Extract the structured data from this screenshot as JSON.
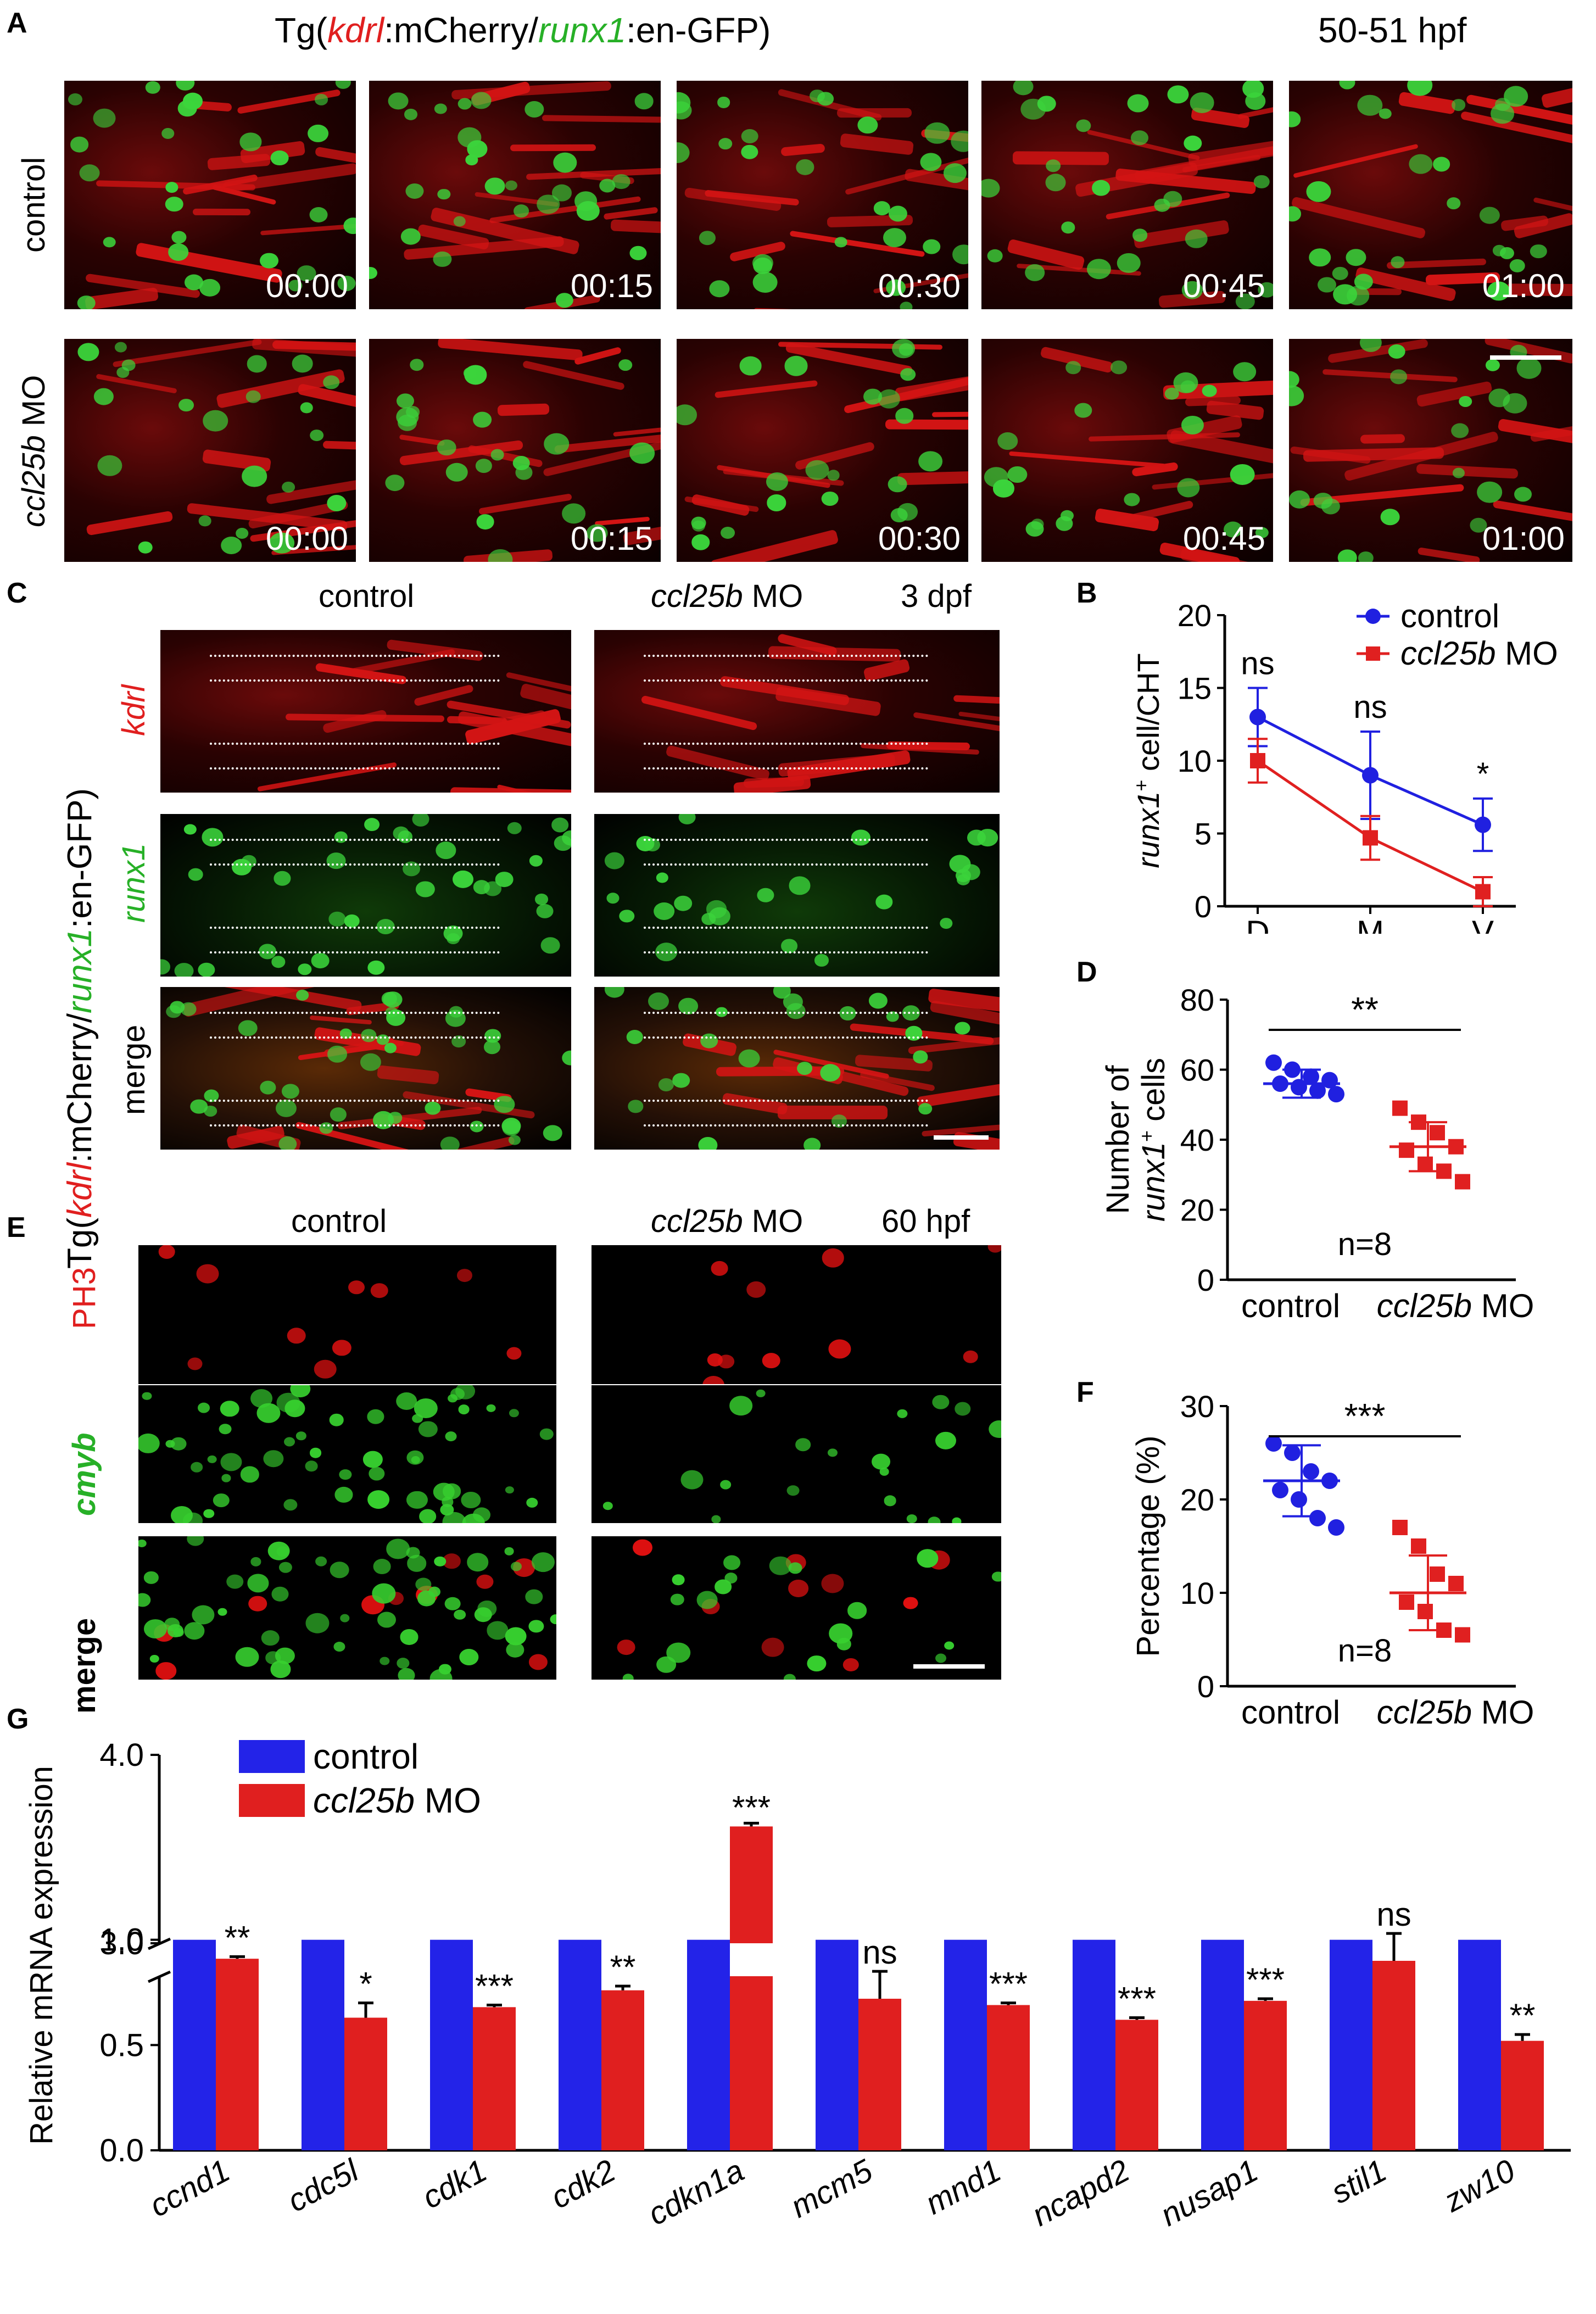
{
  "panelA": {
    "letter": "A",
    "title_prefix": "Tg(",
    "title_kdrl": "kdrl",
    "title_mid1": ":mCherry/",
    "title_runx1": "runx1",
    "title_suffix": ":en-GFP)",
    "stage": "50-51 hpf",
    "row_control": "control",
    "row_mo_gene": "ccl25b",
    "row_mo_suffix": " MO",
    "timestamps": [
      "00:00",
      "00:15",
      "00:30",
      "00:45",
      "01:00"
    ]
  },
  "panelB": {
    "letter": "B",
    "chart_data": {
      "type": "line",
      "categories": [
        "D",
        "M",
        "V"
      ],
      "ylabel_gene": "runx1",
      "ylabel_sup": "+",
      "ylabel_rest": " cell/CHT",
      "ylim": [
        0,
        20
      ],
      "yticks": [
        "0",
        "5",
        "10",
        "15",
        "20"
      ],
      "legend_control": "control",
      "legend_mo_gene": "ccl25b",
      "legend_mo_suffix": " MO",
      "legend_position": "top-right",
      "series": [
        {
          "name": "control",
          "color": "#2020e0",
          "values": [
            13,
            9,
            5.6
          ],
          "errors": [
            2,
            3,
            1.8
          ]
        },
        {
          "name": "ccl25b MO",
          "color": "#e02020",
          "values": [
            10,
            4.7,
            1
          ],
          "errors": [
            1.5,
            1.5,
            1
          ]
        }
      ],
      "annotations": [
        "ns",
        "ns",
        "*"
      ]
    }
  },
  "panelC": {
    "letter": "C",
    "col_control": "control",
    "col_mo_gene": "ccl25b",
    "col_mo_suffix": " MO",
    "stage": "3 dpf",
    "row_kdrl": "kdrl",
    "row_runx1": "runx1",
    "row_merge": "merge",
    "side_prefix": "Tg(",
    "side_kdrl": "kdrl",
    "side_mid": ":mCherry/",
    "side_runx1": "runx1",
    "side_suffix": ":en-GFP)"
  },
  "panelD": {
    "letter": "D",
    "chart_data": {
      "type": "scatter",
      "categories": [
        "control",
        "ccl25b MO"
      ],
      "xlabel_control": "control",
      "xlabel_mo_gene": "ccl25b",
      "xlabel_mo_suffix": " MO",
      "ylabel_line1": "Number of",
      "ylabel_line2_gene": "runx1",
      "ylabel_line2_sup": "+",
      "ylabel_line2_rest": " cells",
      "ylim": [
        0,
        80
      ],
      "yticks": [
        "0",
        "20",
        "40",
        "60",
        "80"
      ],
      "n_label": "n=8",
      "significance": "**",
      "control_points": [
        62,
        60,
        58,
        57,
        56,
        55,
        54,
        53
      ],
      "mo_points": [
        49,
        45,
        42,
        38,
        37,
        33,
        31,
        28
      ],
      "control_mean": 56,
      "control_sd": 4,
      "mo_mean": 38,
      "mo_sd": 7
    }
  },
  "panelE": {
    "letter": "E",
    "col_control": "control",
    "col_mo_gene": "ccl25b",
    "col_mo_suffix": " MO",
    "stage": "60 hpf",
    "row_ph3": "PH3",
    "row_cmyb": "cmyb",
    "row_merge": "merge"
  },
  "panelF": {
    "letter": "F",
    "chart_data": {
      "type": "scatter",
      "categories": [
        "control",
        "ccl25b MO"
      ],
      "xlabel_control": "control",
      "xlabel_mo_gene": "ccl25b",
      "xlabel_mo_suffix": " MO",
      "ylabel": "Percentage (%)",
      "ylim": [
        0,
        30
      ],
      "yticks": [
        "0",
        "10",
        "20",
        "30"
      ],
      "n_label": "n=8",
      "significance": "***",
      "control_points": [
        26,
        25,
        23,
        22,
        21,
        20,
        18,
        17
      ],
      "mo_points": [
        17,
        15,
        12,
        11,
        9,
        8,
        6,
        5.5
      ],
      "control_mean": 22,
      "control_sd": 3.8,
      "mo_mean": 10,
      "mo_sd": 4
    }
  },
  "panelG": {
    "letter": "G",
    "chart_data": {
      "type": "bar",
      "ylabel": "Relative mRNA expression",
      "legend_control": "control",
      "legend_mo_gene": "ccl25b",
      "legend_mo_suffix": " MO",
      "legend_position": "top-left",
      "lower_ylim": [
        0,
        1.2
      ],
      "lower_yticks": [
        "0.0",
        "0.5",
        "1.0"
      ],
      "upper_ylim": [
        3.0,
        4.0
      ],
      "upper_yticks": [
        "3.0",
        "4.0"
      ],
      "categories": [
        "ccnd1",
        "cdc5l",
        "cdk1",
        "cdk2",
        "cdkn1a",
        "mcm5",
        "mnd1",
        "ncapd2",
        "nusap1",
        "stil1",
        "zw10"
      ],
      "series": [
        {
          "name": "control",
          "color": "#2323e8",
          "values": [
            1,
            1,
            1,
            1,
            1,
            1,
            1,
            1,
            1,
            1,
            1
          ]
        },
        {
          "name": "ccl25b MO",
          "color": "#e01f1f",
          "values": [
            0.91,
            0.63,
            0.68,
            0.76,
            3.62,
            0.72,
            0.69,
            0.62,
            0.71,
            0.9,
            0.52
          ],
          "errors": [
            0.01,
            0.07,
            0.01,
            0.02,
            0.01,
            0.13,
            0.01,
            0.01,
            0.01,
            0.13,
            0.03
          ]
        }
      ],
      "annotations": [
        "**",
        "*",
        "***",
        "**",
        "***",
        "ns",
        "***",
        "***",
        "***",
        "ns",
        "**"
      ]
    }
  }
}
